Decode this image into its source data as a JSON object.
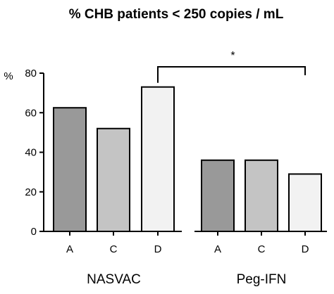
{
  "chart_data": {
    "type": "bar",
    "title": "% CHB patients < 250 copies / mL",
    "ylabel": "%",
    "ylim": [
      0,
      80
    ],
    "yticks": [
      0,
      20,
      40,
      60,
      80
    ],
    "grid": false,
    "groups": [
      {
        "name": "NASVAC",
        "bars": [
          {
            "category": "A",
            "value": 62.5,
            "color": "#999999"
          },
          {
            "category": "C",
            "value": 52,
            "color": "#c4c4c4"
          },
          {
            "category": "D",
            "value": 73,
            "color": "#f2f2f2"
          }
        ]
      },
      {
        "name": "Peg-IFN",
        "bars": [
          {
            "category": "A",
            "value": 36,
            "color": "#999999"
          },
          {
            "category": "C",
            "value": 36,
            "color": "#c4c4c4"
          },
          {
            "category": "D",
            "value": 29,
            "color": "#f2f2f2"
          }
        ]
      }
    ],
    "annotations": [
      {
        "type": "significance-bracket",
        "text": "*",
        "from": "NASVAC D",
        "to": "Peg-IFN D"
      }
    ]
  }
}
